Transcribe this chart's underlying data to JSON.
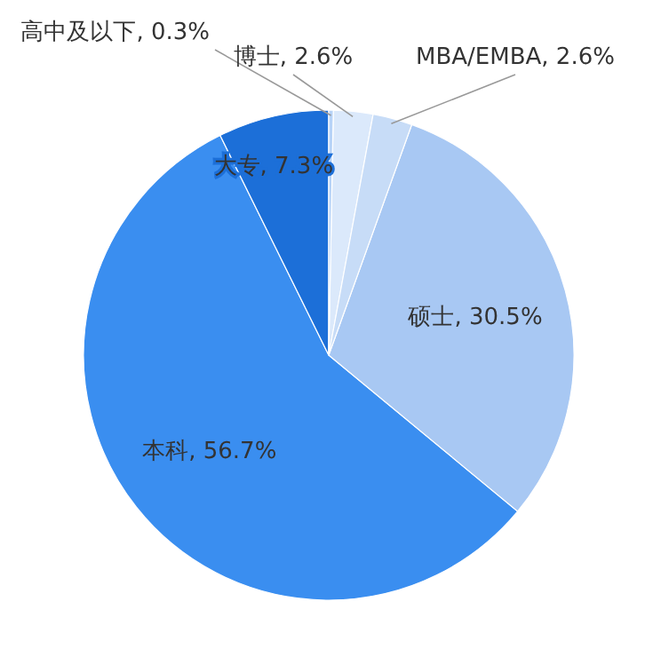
{
  "chart_data": {
    "type": "pie",
    "categories": [
      "高中及以下",
      "博士",
      "MBA/EMBA",
      "硕士",
      "本科",
      "大专"
    ],
    "values": [
      0.3,
      2.6,
      2.6,
      30.5,
      56.7,
      7.3
    ],
    "value_labels": [
      "0.3%",
      "2.6%",
      "2.6%",
      "30.5%",
      "56.7%",
      "7.3%"
    ],
    "colors": [
      "#b7d3f7",
      "#dbe9fb",
      "#c7dcf7",
      "#a8c8f3",
      "#3a8ef0",
      "#1c6fd8"
    ],
    "legend": false
  }
}
